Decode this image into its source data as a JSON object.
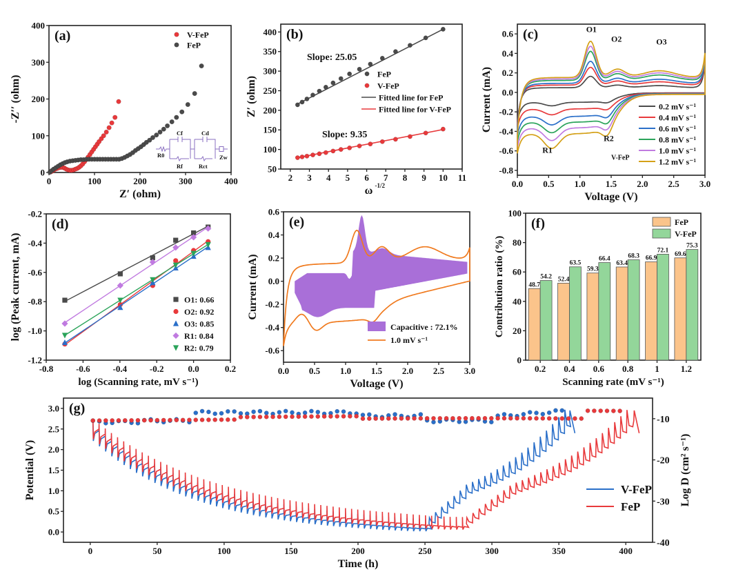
{
  "chart_data": [
    {
      "id": "a",
      "type": "scatter",
      "panel_label": "(a)",
      "xlabel": "Z′ (ohm)",
      "ylabel": "-Z′′ (ohm)",
      "xlim": [
        0,
        400
      ],
      "ylim": [
        0,
        400
      ],
      "xticks": [
        0,
        100,
        200,
        300,
        400
      ],
      "yticks": [
        0,
        100,
        200,
        300,
        400
      ],
      "legend": "top-right",
      "series": [
        {
          "name": "V-FeP",
          "color": "#e8393b",
          "x": [
            3,
            6,
            10,
            14,
            18,
            22,
            26,
            30,
            34,
            38,
            42,
            46,
            50,
            54,
            58,
            62,
            66,
            70,
            74,
            78,
            82,
            86,
            90,
            94,
            98,
            102,
            106,
            110,
            115,
            120,
            126,
            132,
            138,
            145,
            153
          ],
          "y": [
            1,
            3,
            6,
            9,
            11,
            13,
            14,
            14,
            12,
            9,
            7,
            6,
            6,
            7,
            9,
            11,
            14,
            18,
            23,
            29,
            35,
            42,
            49,
            56,
            63,
            70,
            77,
            84,
            92,
            100,
            110,
            122,
            135,
            150,
            193
          ]
        },
        {
          "name": "FeP",
          "color": "#4a4a4a",
          "x": [
            2,
            6,
            10,
            15,
            20,
            25,
            30,
            35,
            40,
            46,
            52,
            58,
            64,
            70,
            76,
            82,
            88,
            94,
            100,
            106,
            112,
            118,
            124,
            130,
            136,
            142,
            148,
            154,
            160,
            166,
            172,
            178,
            184,
            190,
            196,
            202,
            208,
            214,
            221,
            228,
            236,
            244,
            252,
            260,
            270,
            280,
            292,
            305,
            320,
            335
          ],
          "y": [
            1,
            5,
            9,
            13,
            17,
            21,
            24,
            27,
            29,
            31,
            32,
            33,
            34,
            35,
            35,
            36,
            36,
            36,
            36,
            36,
            36,
            36,
            36,
            36,
            36,
            36,
            36,
            36,
            38,
            41,
            45,
            49,
            54,
            60,
            65,
            70,
            76,
            82,
            88,
            95,
            102,
            110,
            118,
            127,
            138,
            150,
            165,
            185,
            215,
            290
          ]
        }
      ],
      "inset": {
        "type": "equivalent-circuit",
        "labels": [
          "R0",
          "Cf",
          "Rf",
          "Cd",
          "Rct",
          "Zw"
        ]
      }
    },
    {
      "id": "b",
      "type": "scatter",
      "panel_label": "(b)",
      "xlabel": "ω^-1/2",
      "ylabel": "Z′ (ohm)",
      "xlim": [
        1.5,
        11
      ],
      "ylim": [
        50,
        420
      ],
      "xticks": [
        2,
        3,
        4,
        5,
        6,
        7,
        8,
        9,
        10,
        11
      ],
      "yticks": [
        50,
        100,
        150,
        200,
        250,
        300,
        350,
        400
      ],
      "legend": "center-right",
      "annotations": [
        {
          "text": "Slope: 25.05",
          "color": "#555555"
        },
        {
          "text": "Slope: 9.35",
          "color": "#e8393b"
        }
      ],
      "series": [
        {
          "name": "FeP",
          "color": "#4a4a4a",
          "x": [
            2.38,
            2.62,
            2.87,
            3.18,
            3.52,
            3.86,
            4.24,
            4.65,
            5.1,
            5.62,
            6.19,
            6.82,
            7.51,
            8.27,
            9.09,
            10.0
          ],
          "y": [
            214,
            221,
            229,
            239,
            249,
            259,
            270,
            281,
            293,
            305,
            318,
            333,
            350,
            366,
            385,
            407
          ]
        },
        {
          "name": "V-FeP",
          "color": "#e8393b",
          "x": [
            2.38,
            2.62,
            2.87,
            3.18,
            3.52,
            3.86,
            4.24,
            4.65,
            5.1,
            5.62,
            6.19,
            6.82,
            7.51,
            8.27,
            9.09,
            10.0
          ],
          "y": [
            79,
            81,
            83,
            86,
            89,
            92,
            96,
            100,
            104,
            109,
            114,
            120,
            126,
            133,
            142,
            152
          ]
        },
        {
          "name": "Fitted line for FeP",
          "color": "#4a4a4a",
          "x": [
            2.38,
            10.0
          ],
          "y": [
            216,
            407
          ]
        },
        {
          "name": "Fitted line for  V-FeP",
          "color": "#e8393b",
          "x": [
            2.38,
            10.0
          ],
          "y": [
            79,
            151
          ]
        }
      ]
    },
    {
      "id": "c",
      "type": "line",
      "panel_label": "(c)",
      "xlabel": "Voltage (V)",
      "ylabel": "Current (mA)",
      "xlim": [
        0,
        3
      ],
      "ylim": [
        -0.85,
        0.7
      ],
      "xticks": [
        0.0,
        0.5,
        1.0,
        1.5,
        2.0,
        2.5,
        3.0
      ],
      "yticks": [
        -0.8,
        -0.6,
        -0.4,
        -0.2,
        0.0,
        0.2,
        0.4,
        0.6
      ],
      "legend": "bottom-right",
      "annotations": [
        "O1",
        "O2",
        "O3",
        "R1",
        "R2",
        "V-FeP"
      ],
      "series": [
        {
          "name": "0.2 mV s-1",
          "color": "#4a4a4a",
          "scale": 0.2
        },
        {
          "name": "0.4 mV s-1",
          "color": "#e8393b",
          "scale": 0.4
        },
        {
          "name": "0.6 mV s-1",
          "color": "#2a6fc9",
          "scale": 0.6
        },
        {
          "name": "0.8 mV s-1",
          "color": "#2aa35a",
          "scale": 0.8
        },
        {
          "name": "1.0 mV s-1",
          "color": "#c07ae0",
          "scale": 1.0
        },
        {
          "name": "1.2 mV s-1",
          "color": "#d4a017",
          "scale": 1.2
        }
      ],
      "anodic_peak_currents": [
        0.16,
        0.25,
        0.31,
        0.41,
        0.46,
        0.51
      ],
      "cathodic_R1_currents": [
        -0.12,
        -0.2,
        -0.29,
        -0.36,
        -0.43,
        -0.5
      ]
    },
    {
      "id": "d",
      "type": "scatter",
      "panel_label": "(d)",
      "xlabel": "log (Scanning rate, mV s-1)",
      "ylabel": "log (Peak current, mA)",
      "xlim": [
        -0.8,
        0.2
      ],
      "ylim": [
        -1.2,
        -0.2
      ],
      "xticks": [
        -0.8,
        -0.6,
        -0.4,
        -0.2,
        0.0,
        0.2
      ],
      "yticks": [
        -1.2,
        -1.0,
        -0.8,
        -0.6,
        -0.4,
        -0.2
      ],
      "legend": "bottom-right",
      "x": [
        -0.699,
        -0.398,
        -0.222,
        -0.097,
        0.0,
        0.079
      ],
      "series": [
        {
          "name": "O1: 0.66",
          "color": "#4a4a4a",
          "marker": "square",
          "y": [
            -0.79,
            -0.61,
            -0.5,
            -0.38,
            -0.33,
            -0.29
          ]
        },
        {
          "name": "O2: 0.92",
          "color": "#e8393b",
          "marker": "circle",
          "y": [
            -1.09,
            -0.82,
            -0.69,
            -0.52,
            -0.45,
            -0.39
          ]
        },
        {
          "name": "O3: 0.85",
          "color": "#2a6fc9",
          "marker": "triangle-up",
          "y": [
            -1.08,
            -0.84,
            -0.67,
            -0.57,
            -0.49,
            -0.43
          ]
        },
        {
          "name": "R1: 0.84",
          "color": "#c07ae0",
          "marker": "diamond",
          "y": [
            -0.95,
            -0.69,
            -0.53,
            -0.43,
            -0.36,
            -0.3
          ]
        },
        {
          "name": "R2: 0.79",
          "color": "#2aa35a",
          "marker": "triangle-down",
          "y": [
            -1.03,
            -0.79,
            -0.65,
            -0.55,
            -0.47,
            -0.41
          ]
        }
      ]
    },
    {
      "id": "e",
      "type": "area",
      "panel_label": "(e)",
      "xlabel": "Voltage (V)",
      "ylabel": "Current (mA)",
      "xlim": [
        0,
        3
      ],
      "ylim": [
        -0.7,
        0.6
      ],
      "xticks": [
        0.0,
        0.5,
        1.0,
        1.5,
        2.0,
        2.5,
        3.0
      ],
      "yticks": [
        -0.6,
        -0.4,
        -0.2,
        0.0,
        0.2,
        0.4,
        0.6
      ],
      "legend": "bottom-right",
      "series": [
        {
          "name": "Capacitive : 72.1%",
          "color": "#a96fd8",
          "kind": "fill"
        },
        {
          "name": "1.0 mV s-1",
          "color": "#f07a1e",
          "kind": "line"
        }
      ]
    },
    {
      "id": "f",
      "type": "bar",
      "panel_label": "(f)",
      "xlabel": "Scanning rate (mV s-1)",
      "ylabel": "Contribution ratio (%)",
      "ylim": [
        0,
        100
      ],
      "yticks": [
        0,
        20,
        40,
        60,
        80,
        100
      ],
      "categories": [
        "0.2",
        "0.4",
        "0.6",
        "0.8",
        "1",
        "1.2"
      ],
      "legend": "top-right",
      "series": [
        {
          "name": "FeP",
          "color": "#fbc48b",
          "values": [
            48.7,
            52.4,
            59.3,
            63.4,
            66.9,
            69.6
          ]
        },
        {
          "name": "V-FeP",
          "color": "#93d69a",
          "values": [
            54.2,
            63.5,
            66.4,
            68.3,
            72.1,
            75.3
          ]
        }
      ]
    },
    {
      "id": "g",
      "type": "line",
      "panel_label": "(g)",
      "xlabel": "Time (h)",
      "ylabel": "Potential (V)",
      "ylabel_right": "Log D (cm2 s-1)",
      "xlim": [
        -20,
        420
      ],
      "ylim": [
        -0.25,
        3.25
      ],
      "ylim_right": [
        -40,
        -5
      ],
      "xticks": [
        0,
        50,
        100,
        150,
        200,
        250,
        300,
        350,
        400
      ],
      "yticks": [
        0.0,
        0.5,
        1.0,
        1.5,
        2.0,
        2.5,
        3.0
      ],
      "yticks_right": [
        -10,
        -20,
        -30,
        -40
      ],
      "legend": "bottom-right",
      "series": [
        {
          "name": "V-FeP",
          "color": "#2a6fc9",
          "end_time": 362,
          "reverse_start": 253
        },
        {
          "name": "FeP",
          "color": "#e8393b",
          "end_time": 410,
          "reverse_start": 281
        }
      ]
    }
  ]
}
